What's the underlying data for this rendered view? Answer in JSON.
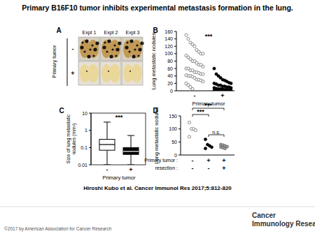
{
  "title": "Primary B16F10 tumor inhibits experimental metastasis formation in the lung.",
  "panel_a": {
    "label": "A",
    "columns": [
      "Expt 1",
      "Expt 2",
      "Expt 3"
    ],
    "row_title": "Primary tumor",
    "rows": [
      "-",
      "+"
    ]
  },
  "chart_data": [
    {
      "type": "strip",
      "panel": "B",
      "categories": [
        "-",
        "+"
      ],
      "xlabel": "Primary tumor",
      "ylabel": "Lung metastatic nodules",
      "values": [
        [
          150,
          140,
          130,
          125,
          120,
          110,
          105,
          100,
          100,
          95,
          90,
          85,
          80,
          80,
          75,
          70,
          70,
          65,
          60,
          60,
          55,
          55,
          50,
          50,
          48,
          45,
          45,
          42,
          40,
          40,
          38,
          35,
          30,
          30,
          28,
          25,
          20,
          15,
          10,
          5
        ],
        [
          60,
          45,
          40,
          35,
          30,
          28,
          25,
          22,
          20,
          20,
          18,
          15,
          15,
          12,
          12,
          10,
          10,
          8,
          8,
          6,
          5,
          5,
          4,
          3,
          3,
          2,
          2,
          1,
          1,
          0,
          0,
          0
        ]
      ],
      "colors": [
        "#ffffff",
        "#000000"
      ],
      "marker": "circle",
      "ylim": [
        0,
        160
      ],
      "yticks": [
        0,
        20,
        40,
        60,
        80,
        100,
        120,
        140,
        160
      ],
      "annotations": [
        "***"
      ]
    },
    {
      "type": "box",
      "panel": "C",
      "categories": [
        "-",
        "+"
      ],
      "xlabel": "Primary tumor",
      "ylabel": [
        "Size of lung metastatic",
        "nodules (mm²)"
      ],
      "boxes": [
        {
          "min": 0.01,
          "q1": 0.07,
          "median": 0.15,
          "q3": 0.3,
          "max": 3
        },
        {
          "min": 0.01,
          "q1": 0.04,
          "median": 0.06,
          "q3": 0.1,
          "max": 0.5
        }
      ],
      "colors": [
        "#ffffff",
        "#000000"
      ],
      "log": "y",
      "ylim": [
        0.01,
        10
      ],
      "yticks": [
        0.01,
        0.1,
        1,
        10
      ],
      "annotations": [
        "***"
      ]
    },
    {
      "type": "strip",
      "panel": "D",
      "ylabel": "Lung metastatic nodules",
      "x_rows": [
        {
          "label": "Primary tumor :",
          "values": [
            "-",
            "+",
            "+"
          ]
        },
        {
          "label": "resection :",
          "values": [
            "-",
            "-",
            "+"
          ]
        }
      ],
      "values": [
        [
          125,
          100,
          100,
          95,
          70
        ],
        [
          60,
          40,
          35,
          30,
          25
        ],
        [
          40,
          38,
          35,
          32,
          30,
          28,
          25
        ]
      ],
      "colors": [
        "#ffffff",
        "#000000",
        "#999999"
      ],
      "marker": "circle",
      "ylim": [
        0,
        150
      ],
      "yticks": [
        0,
        50,
        100,
        150
      ],
      "comparisons": [
        {
          "groups": [
            0,
            2
          ],
          "label": "***"
        },
        {
          "groups": [
            0,
            1
          ],
          "label": "***"
        },
        {
          "groups": [
            1,
            2
          ],
          "label": "n.s."
        }
      ]
    }
  ],
  "citation": "Hiroshi Kubo et al. Cancer Immunol Res 2017;5:812-820",
  "copyright": "©2017 by American Association for Cancer Research",
  "journal": [
    "Cancer",
    "Immunology Research"
  ]
}
